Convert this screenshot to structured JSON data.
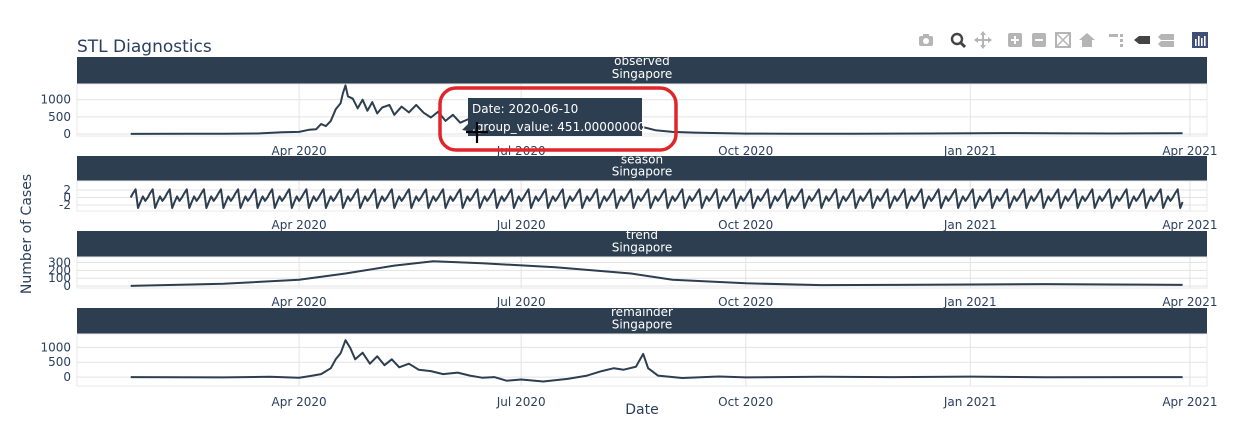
{
  "title": "STL Diagnostics",
  "colors": {
    "line": "#2c3e50",
    "strip": "#2c3e50",
    "grid": "#e3e3e3",
    "annotation": "#e0262b",
    "modebar": "#b5b5b5",
    "modebar_active": "#444444"
  },
  "modebar": {
    "icons": [
      "camera-icon",
      "zoom-icon",
      "pan-icon",
      "zoom-in-icon",
      "zoom-out-icon",
      "autoscale-icon",
      "reset-axes-icon",
      "spike-lines-icon",
      "hover-closest-icon",
      "hover-compare-icon",
      "plotly-logo-icon"
    ]
  },
  "hover": {
    "date_line": "Date: 2020-06-10",
    "value_line": ".group_value:  451.00000000"
  },
  "chart_data": {
    "type": "line",
    "title": "STL Diagnostics",
    "xlabel": "Date",
    "ylabel": "Number of Cases",
    "x_range": [
      "2020-01-01",
      "2021-04-08"
    ],
    "x_ticks": [
      "2020-04-01",
      "2020-07-01",
      "2020-10-01",
      "2021-01-01",
      "2021-04-01"
    ],
    "x_tick_labels": [
      "Apr 2020",
      "Jul 2020",
      "Oct 2020",
      "Jan 2021",
      "Apr 2021"
    ],
    "grid": true,
    "panels": [
      {
        "strip": [
          "observed",
          "Singapore"
        ],
        "ylim": [
          -60,
          1460
        ],
        "y_ticks": [
          0,
          500,
          1000
        ],
        "y_tick_labels": [
          "0",
          "500",
          "1000"
        ],
        "points": [
          [
            "2020-01-23",
            1
          ],
          [
            "2020-02-15",
            5
          ],
          [
            "2020-03-01",
            3
          ],
          [
            "2020-03-15",
            12
          ],
          [
            "2020-03-25",
            50
          ],
          [
            "2020-04-01",
            60
          ],
          [
            "2020-04-05",
            120
          ],
          [
            "2020-04-08",
            140
          ],
          [
            "2020-04-10",
            290
          ],
          [
            "2020-04-12",
            230
          ],
          [
            "2020-04-14",
            380
          ],
          [
            "2020-04-16",
            720
          ],
          [
            "2020-04-18",
            900
          ],
          [
            "2020-04-19",
            1200
          ],
          [
            "2020-04-20",
            1420
          ],
          [
            "2020-04-21",
            1100
          ],
          [
            "2020-04-23",
            1030
          ],
          [
            "2020-04-25",
            750
          ],
          [
            "2020-04-27",
            1000
          ],
          [
            "2020-04-29",
            680
          ],
          [
            "2020-05-01",
            930
          ],
          [
            "2020-05-03",
            600
          ],
          [
            "2020-05-05",
            770
          ],
          [
            "2020-05-08",
            850
          ],
          [
            "2020-05-10",
            560
          ],
          [
            "2020-05-13",
            800
          ],
          [
            "2020-05-16",
            630
          ],
          [
            "2020-05-19",
            850
          ],
          [
            "2020-05-22",
            620
          ],
          [
            "2020-05-25",
            480
          ],
          [
            "2020-05-28",
            650
          ],
          [
            "2020-05-31",
            380
          ],
          [
            "2020-06-03",
            560
          ],
          [
            "2020-06-06",
            330
          ],
          [
            "2020-06-10",
            451
          ],
          [
            "2020-06-13",
            300
          ],
          [
            "2020-06-17",
            250
          ],
          [
            "2020-06-22",
            200
          ],
          [
            "2020-06-28",
            160
          ],
          [
            "2020-07-05",
            140
          ],
          [
            "2020-07-12",
            150
          ],
          [
            "2020-07-20",
            170
          ],
          [
            "2020-07-28",
            180
          ],
          [
            "2020-08-05",
            200
          ],
          [
            "2020-08-10",
            180
          ],
          [
            "2020-08-15",
            130
          ],
          [
            "2020-08-20",
            200
          ],
          [
            "2020-08-25",
            110
          ],
          [
            "2020-09-01",
            60
          ],
          [
            "2020-09-10",
            40
          ],
          [
            "2020-09-20",
            25
          ],
          [
            "2020-10-01",
            10
          ],
          [
            "2020-10-20",
            8
          ],
          [
            "2020-11-15",
            8
          ],
          [
            "2020-12-15",
            12
          ],
          [
            "2021-01-15",
            25
          ],
          [
            "2021-02-10",
            15
          ],
          [
            "2021-03-01",
            12
          ],
          [
            "2021-03-29",
            20
          ]
        ]
      },
      {
        "strip": [
          "season",
          "Singapore"
        ],
        "ylim": [
          -3.6,
          4.4
        ],
        "y_ticks": [
          -2,
          0,
          2
        ],
        "y_tick_labels": [
          "-2",
          "0",
          "2"
        ],
        "pattern": [
          0,
          1.2,
          2.2,
          -2.8,
          -1.2,
          0.3,
          -0.9
        ],
        "start": "2020-01-23",
        "end": "2021-03-29"
      },
      {
        "strip": [
          "trend",
          "Singapore"
        ],
        "ylim": [
          -25,
          370
        ],
        "y_ticks": [
          0,
          100,
          200,
          300
        ],
        "y_tick_labels": [
          "0",
          "100",
          "200",
          "300"
        ],
        "points": [
          [
            "2020-01-23",
            2
          ],
          [
            "2020-03-01",
            30
          ],
          [
            "2020-04-01",
            80
          ],
          [
            "2020-04-20",
            160
          ],
          [
            "2020-05-10",
            260
          ],
          [
            "2020-05-26",
            315
          ],
          [
            "2020-06-15",
            290
          ],
          [
            "2020-07-15",
            240
          ],
          [
            "2020-08-15",
            160
          ],
          [
            "2020-09-01",
            80
          ],
          [
            "2020-10-01",
            35
          ],
          [
            "2020-11-01",
            12
          ],
          [
            "2020-12-01",
            15
          ],
          [
            "2021-01-01",
            20
          ],
          [
            "2021-02-01",
            25
          ],
          [
            "2021-03-01",
            20
          ],
          [
            "2021-03-29",
            15
          ]
        ]
      },
      {
        "strip": [
          "remainder",
          "Singapore"
        ],
        "ylim": [
          -300,
          1450
        ],
        "y_ticks": [
          0,
          500,
          1000
        ],
        "y_tick_labels": [
          "0",
          "500",
          "1000"
        ],
        "points": [
          [
            "2020-01-23",
            0
          ],
          [
            "2020-03-01",
            -10
          ],
          [
            "2020-03-20",
            10
          ],
          [
            "2020-04-01",
            -20
          ],
          [
            "2020-04-05",
            30
          ],
          [
            "2020-04-10",
            100
          ],
          [
            "2020-04-14",
            300
          ],
          [
            "2020-04-16",
            600
          ],
          [
            "2020-04-18",
            800
          ],
          [
            "2020-04-20",
            1240
          ],
          [
            "2020-04-22",
            980
          ],
          [
            "2020-04-24",
            600
          ],
          [
            "2020-04-27",
            820
          ],
          [
            "2020-04-30",
            450
          ],
          [
            "2020-05-03",
            700
          ],
          [
            "2020-05-06",
            400
          ],
          [
            "2020-05-09",
            600
          ],
          [
            "2020-05-12",
            330
          ],
          [
            "2020-05-16",
            450
          ],
          [
            "2020-05-20",
            250
          ],
          [
            "2020-05-25",
            200
          ],
          [
            "2020-05-30",
            100
          ],
          [
            "2020-06-05",
            150
          ],
          [
            "2020-06-10",
            50
          ],
          [
            "2020-06-15",
            -20
          ],
          [
            "2020-06-20",
            0
          ],
          [
            "2020-06-25",
            -120
          ],
          [
            "2020-07-01",
            -80
          ],
          [
            "2020-07-10",
            -150
          ],
          [
            "2020-07-20",
            -60
          ],
          [
            "2020-07-28",
            50
          ],
          [
            "2020-08-03",
            200
          ],
          [
            "2020-08-08",
            300
          ],
          [
            "2020-08-12",
            250
          ],
          [
            "2020-08-17",
            350
          ],
          [
            "2020-08-20",
            780
          ],
          [
            "2020-08-22",
            300
          ],
          [
            "2020-08-26",
            50
          ],
          [
            "2020-09-05",
            -30
          ],
          [
            "2020-09-20",
            20
          ],
          [
            "2020-10-01",
            -10
          ],
          [
            "2020-11-01",
            10
          ],
          [
            "2020-12-01",
            0
          ],
          [
            "2021-01-01",
            15
          ],
          [
            "2021-02-01",
            -5
          ],
          [
            "2021-03-29",
            0
          ]
        ]
      }
    ]
  }
}
